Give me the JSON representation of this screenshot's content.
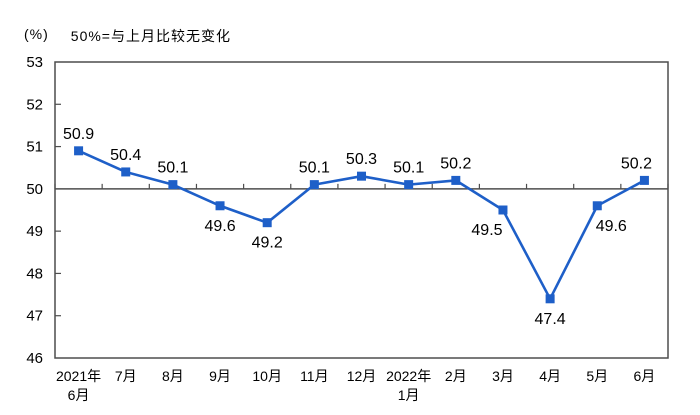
{
  "header": {
    "unit_label": "(%)",
    "subtitle": "50%=与上月比较无变化"
  },
  "chart_data": {
    "type": "line",
    "title": "",
    "xlabel": "",
    "ylabel": "(%)",
    "categories": [
      [
        "2021年",
        "6月"
      ],
      [
        "7月"
      ],
      [
        "8月"
      ],
      [
        "9月"
      ],
      [
        "10月"
      ],
      [
        "11月"
      ],
      [
        "12月"
      ],
      [
        "2022年",
        "1月"
      ],
      [
        "2月"
      ],
      [
        "3月"
      ],
      [
        "4月"
      ],
      [
        "5月"
      ],
      [
        "6月"
      ]
    ],
    "values": [
      50.9,
      50.4,
      50.1,
      49.6,
      49.2,
      50.1,
      50.3,
      50.1,
      50.2,
      49.5,
      47.4,
      49.6,
      50.2
    ],
    "ylim": [
      46,
      53
    ],
    "ytick_step": 1,
    "reference_line": 50,
    "marker_shape": "square",
    "grid": false,
    "legend_position": "none",
    "label_placements": [
      "above",
      "above",
      "above",
      "below",
      "below",
      "above",
      "above",
      "above",
      "above",
      "below-left",
      "below",
      "below-right",
      "above-left"
    ],
    "colors": {
      "line": "#1E5FC8",
      "marker": "#1E5FC8",
      "axis": "#4d4d4d",
      "text": "#000000",
      "background": "#ffffff"
    }
  }
}
